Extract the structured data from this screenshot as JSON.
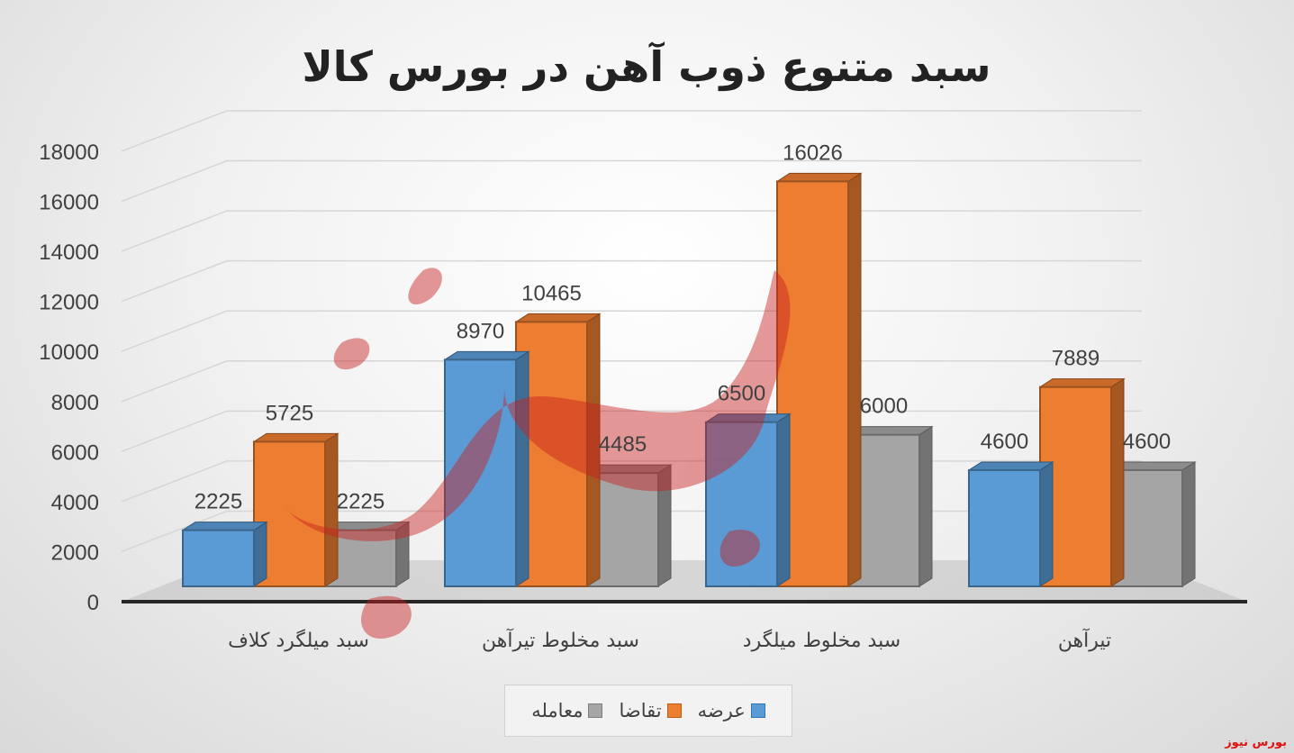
{
  "chart_data": {
    "type": "bar",
    "title": "سبد متنوع ذوب آهن در بورس کالا",
    "categories": [
      "سبد میلگرد کلاف",
      "سبد مخلوط تیرآهن",
      "سبد مخلوط میلگرد",
      "تیرآهن"
    ],
    "series": [
      {
        "name": "عرضه",
        "values": [
          2225,
          8970,
          6500,
          4600
        ],
        "color": "#5b9bd5"
      },
      {
        "name": "تقاضا",
        "values": [
          5725,
          10465,
          16026,
          7889
        ],
        "color": "#ed7d31"
      },
      {
        "name": "معامله",
        "values": [
          2225,
          4485,
          6000,
          4600
        ],
        "color": "#a5a5a5"
      }
    ],
    "ylim": [
      0,
      18000
    ],
    "yticks": [
      0,
      2000,
      4000,
      6000,
      8000,
      10000,
      12000,
      14000,
      16000,
      18000
    ],
    "grid": true,
    "legend_position": "bottom"
  },
  "watermark": {
    "brand_text": "بورس نیوز",
    "color": "#c81e1e"
  }
}
